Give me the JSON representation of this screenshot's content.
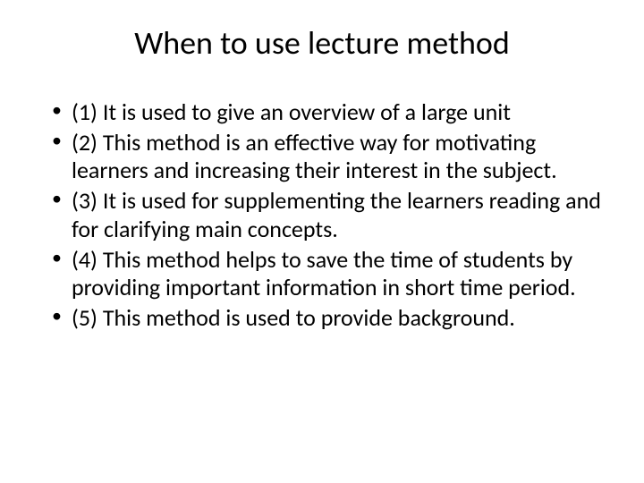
{
  "slide": {
    "title": "When to use lecture method",
    "bullets": [
      "(1) It is used to give an overview of a large unit",
      "(2) This method is an effective way for motivating learners and increasing their interest in the subject.",
      "(3) It is used for supplementing the learners reading and for clarifying main concepts.",
      "(4) This method helps to save the time of students by providing important information in short time period.",
      "(5) This method is used to provide background."
    ]
  },
  "style": {
    "background_color": "#ffffff",
    "text_color": "#000000",
    "title_fontsize": 36,
    "body_fontsize": 26,
    "font_family": "Calibri"
  }
}
